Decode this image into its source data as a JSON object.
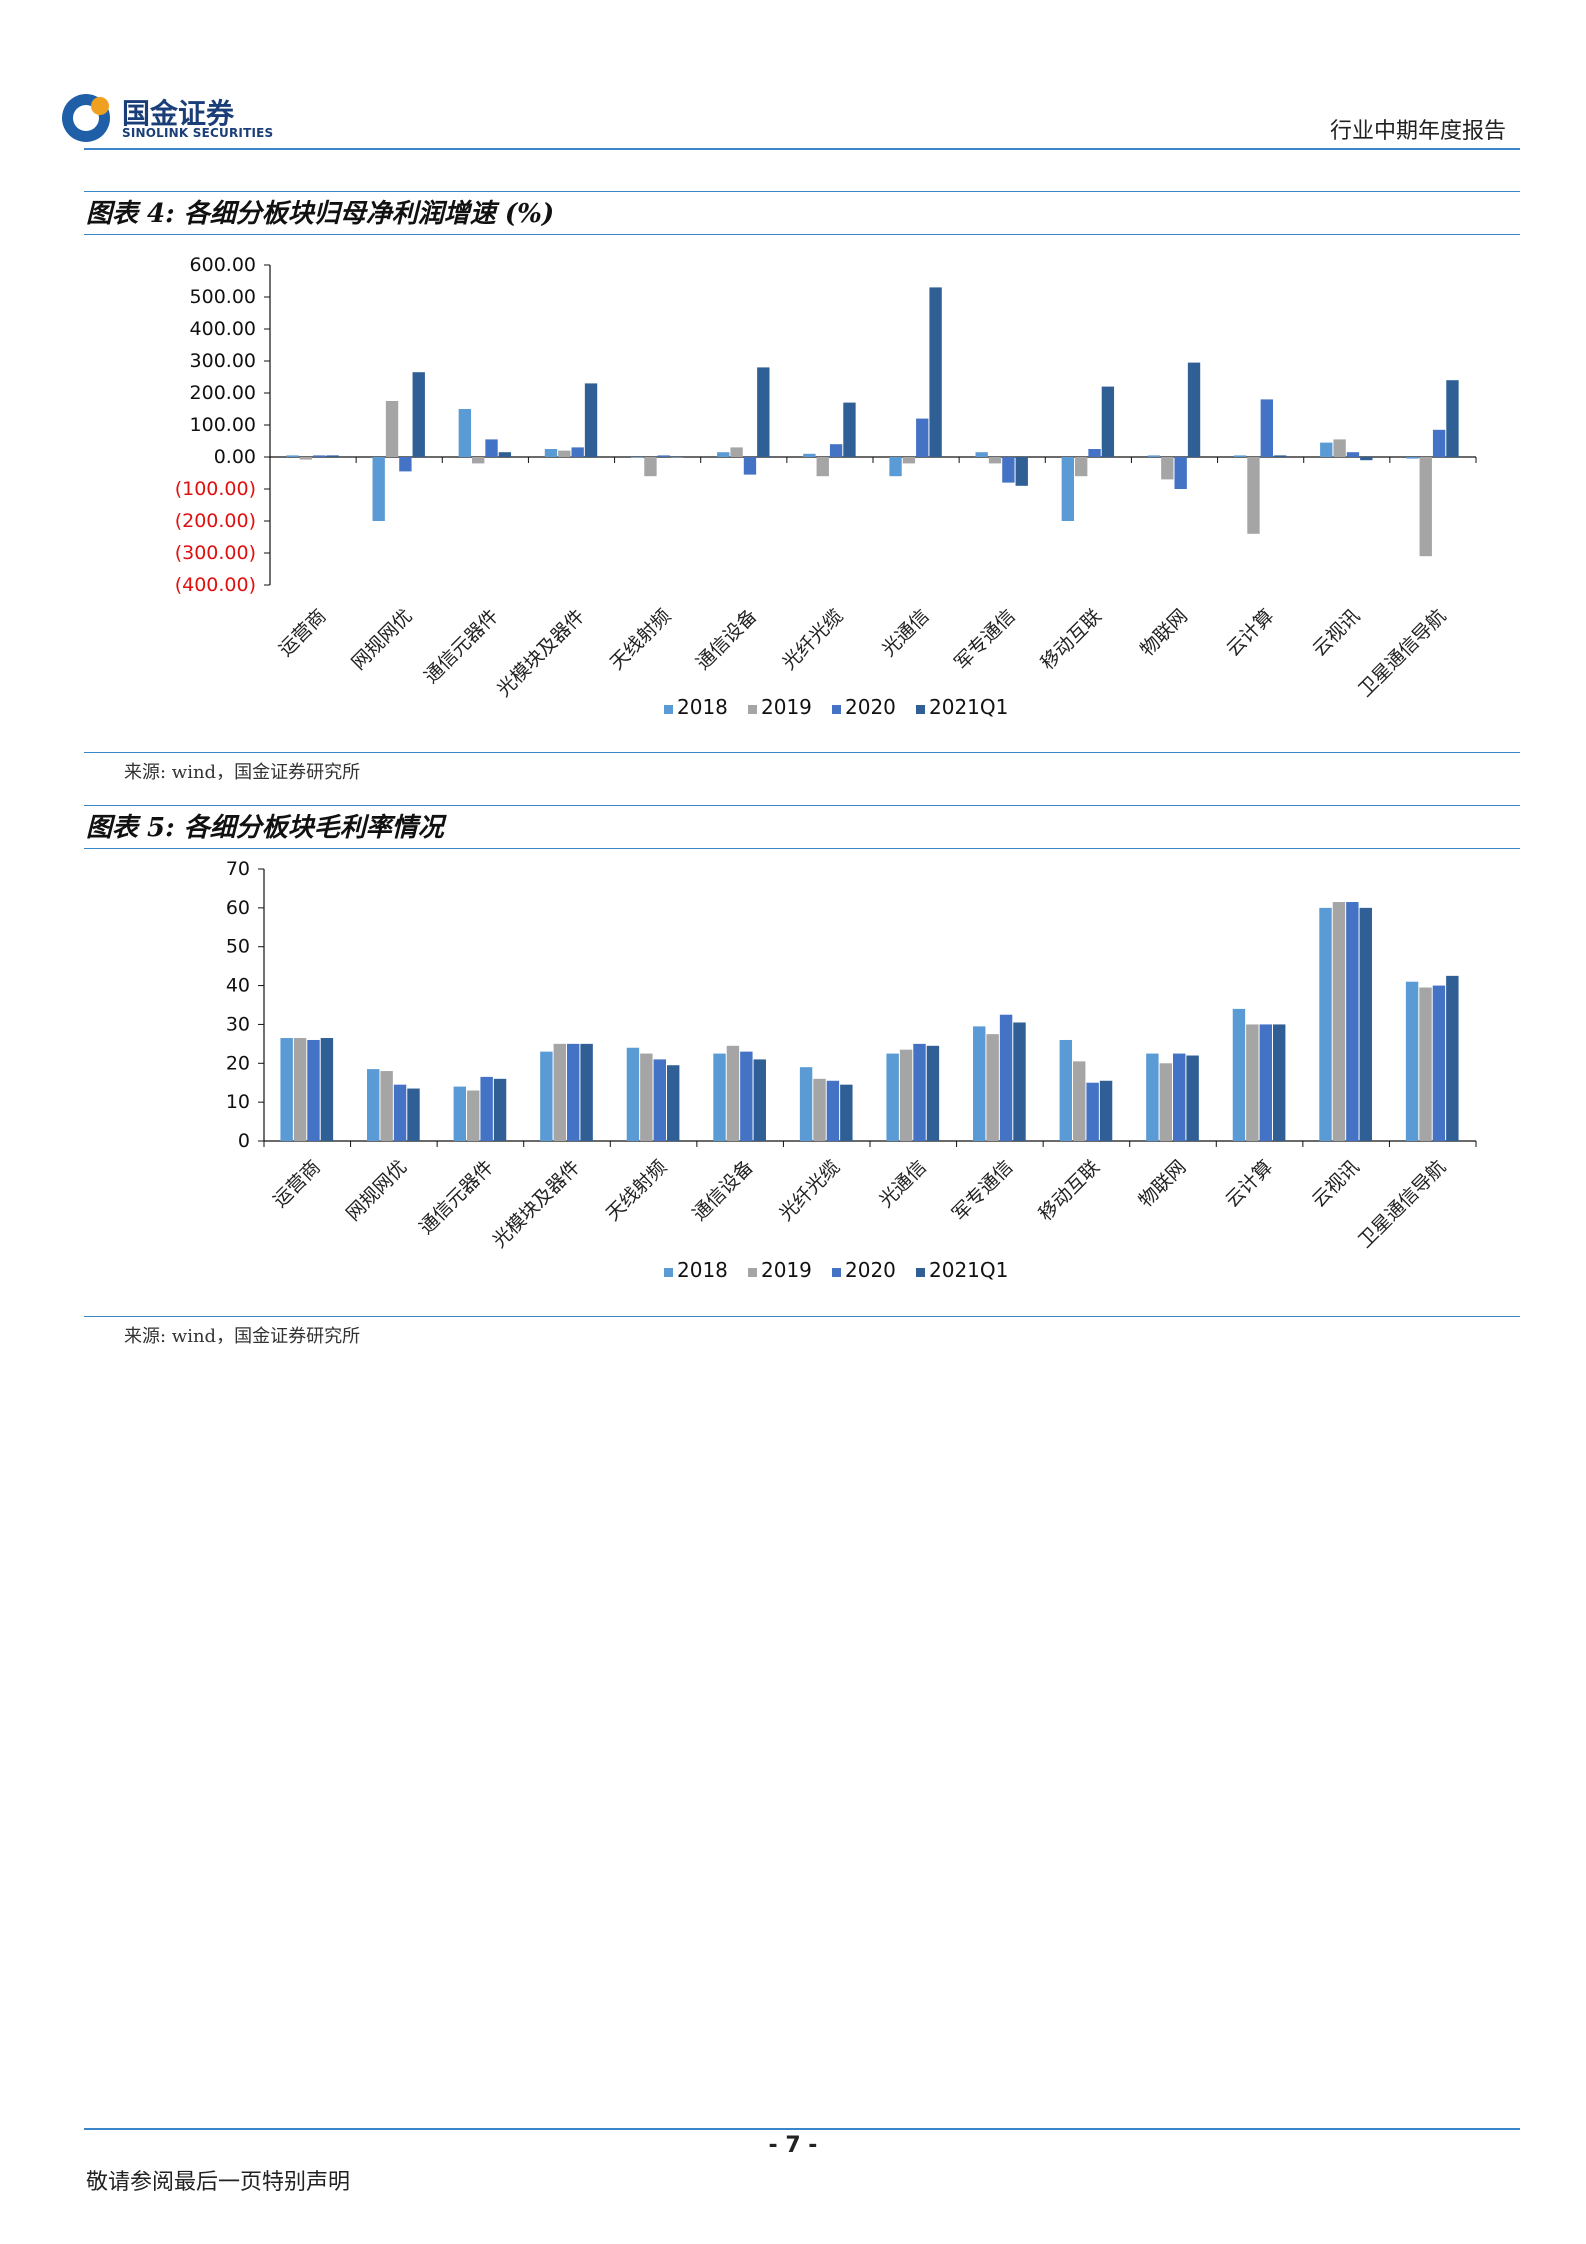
{
  "header": {
    "logo_cn": "国金证券",
    "logo_en": "SINOLINK SECURITIES",
    "report_type": "行业中期年度报告"
  },
  "figure4": {
    "title": "图表 4: 各细分板块归母净利润增速 (%)",
    "source": "来源: wind，国金证券研究所"
  },
  "figure5": {
    "title": "图表 5: 各细分板块毛利率情况",
    "source": "来源: wind，国金证券研究所"
  },
  "footer": {
    "page_number": "- 7 -",
    "disclaimer": "敬请参阅最后一页特别声明"
  },
  "colors": {
    "s2018": "#5b9bd5",
    "s2019": "#a5a5a5",
    "s2020": "#4472c4",
    "s2021": "#2f5f95",
    "accent": "#3a86c8",
    "negative_tick": "#e01010"
  },
  "chart_data": [
    {
      "id": "chart1",
      "type": "bar",
      "title": "各细分板块归母净利润增速 (%)",
      "categories": [
        "运营商",
        "网规网优",
        "通信元器件",
        "光模块及器件",
        "天线射频",
        "通信设备",
        "光纤光缆",
        "光通信",
        "军专通信",
        "移动互联",
        "物联网",
        "云计算",
        "云视讯",
        "卫星通信导航"
      ],
      "series": [
        {
          "name": "2018",
          "values": [
            5,
            -200,
            150,
            25,
            -2,
            15,
            10,
            -60,
            15,
            -200,
            5,
            5,
            45,
            -5
          ]
        },
        {
          "name": "2019",
          "values": [
            -8,
            175,
            -20,
            20,
            -60,
            30,
            -60,
            -20,
            -20,
            -60,
            -70,
            -240,
            55,
            -310
          ]
        },
        {
          "name": "2020",
          "values": [
            5,
            -45,
            55,
            30,
            5,
            -55,
            40,
            120,
            -80,
            25,
            -100,
            180,
            15,
            85
          ]
        },
        {
          "name": "2021Q1",
          "values": [
            5,
            265,
            15,
            230,
            0,
            280,
            170,
            530,
            -90,
            220,
            295,
            5,
            -10,
            240
          ]
        }
      ],
      "ylim": [
        -400,
        600
      ],
      "yticks": [
        600,
        500,
        400,
        300,
        200,
        100,
        0,
        -100,
        -200,
        -300,
        -400
      ],
      "ytick_labels": [
        "600.00",
        "500.00",
        "400.00",
        "300.00",
        "200.00",
        "100.00",
        "0.00",
        "(100.00)",
        "(200.00)",
        "(300.00)",
        "(400.00)"
      ],
      "legend": [
        "2018",
        "2019",
        "2020",
        "2021Q1"
      ]
    },
    {
      "id": "chart2",
      "type": "bar",
      "title": "各细分板块毛利率情况",
      "categories": [
        "运营商",
        "网规网优",
        "通信元器件",
        "光模块及器件",
        "天线射频",
        "通信设备",
        "光纤光缆",
        "光通信",
        "军专通信",
        "移动互联",
        "物联网",
        "云计算",
        "云视讯",
        "卫星通信导航"
      ],
      "series": [
        {
          "name": "2018",
          "values": [
            26.5,
            18.5,
            14,
            23,
            24,
            22.5,
            19,
            22.5,
            29.5,
            26,
            22.5,
            34,
            60,
            41
          ]
        },
        {
          "name": "2019",
          "values": [
            26.5,
            18,
            13,
            25,
            22.5,
            24.5,
            16,
            23.5,
            27.5,
            20.5,
            20,
            30,
            61.5,
            39.5
          ]
        },
        {
          "name": "2020",
          "values": [
            26,
            14.5,
            16.5,
            25,
            21,
            23,
            15.5,
            25,
            32.5,
            15,
            22.5,
            30,
            61.5,
            40
          ]
        },
        {
          "name": "2021Q1",
          "values": [
            26.5,
            13.5,
            16,
            25,
            19.5,
            21,
            14.5,
            24.5,
            30.5,
            15.5,
            22,
            30,
            60,
            42.5
          ]
        }
      ],
      "ylim": [
        0,
        70
      ],
      "yticks": [
        70,
        60,
        50,
        40,
        30,
        20,
        10,
        0
      ],
      "ytick_labels": [
        "70",
        "60",
        "50",
        "40",
        "30",
        "20",
        "10",
        "0"
      ],
      "legend": [
        "2018",
        "2019",
        "2020",
        "2021Q1"
      ]
    }
  ]
}
